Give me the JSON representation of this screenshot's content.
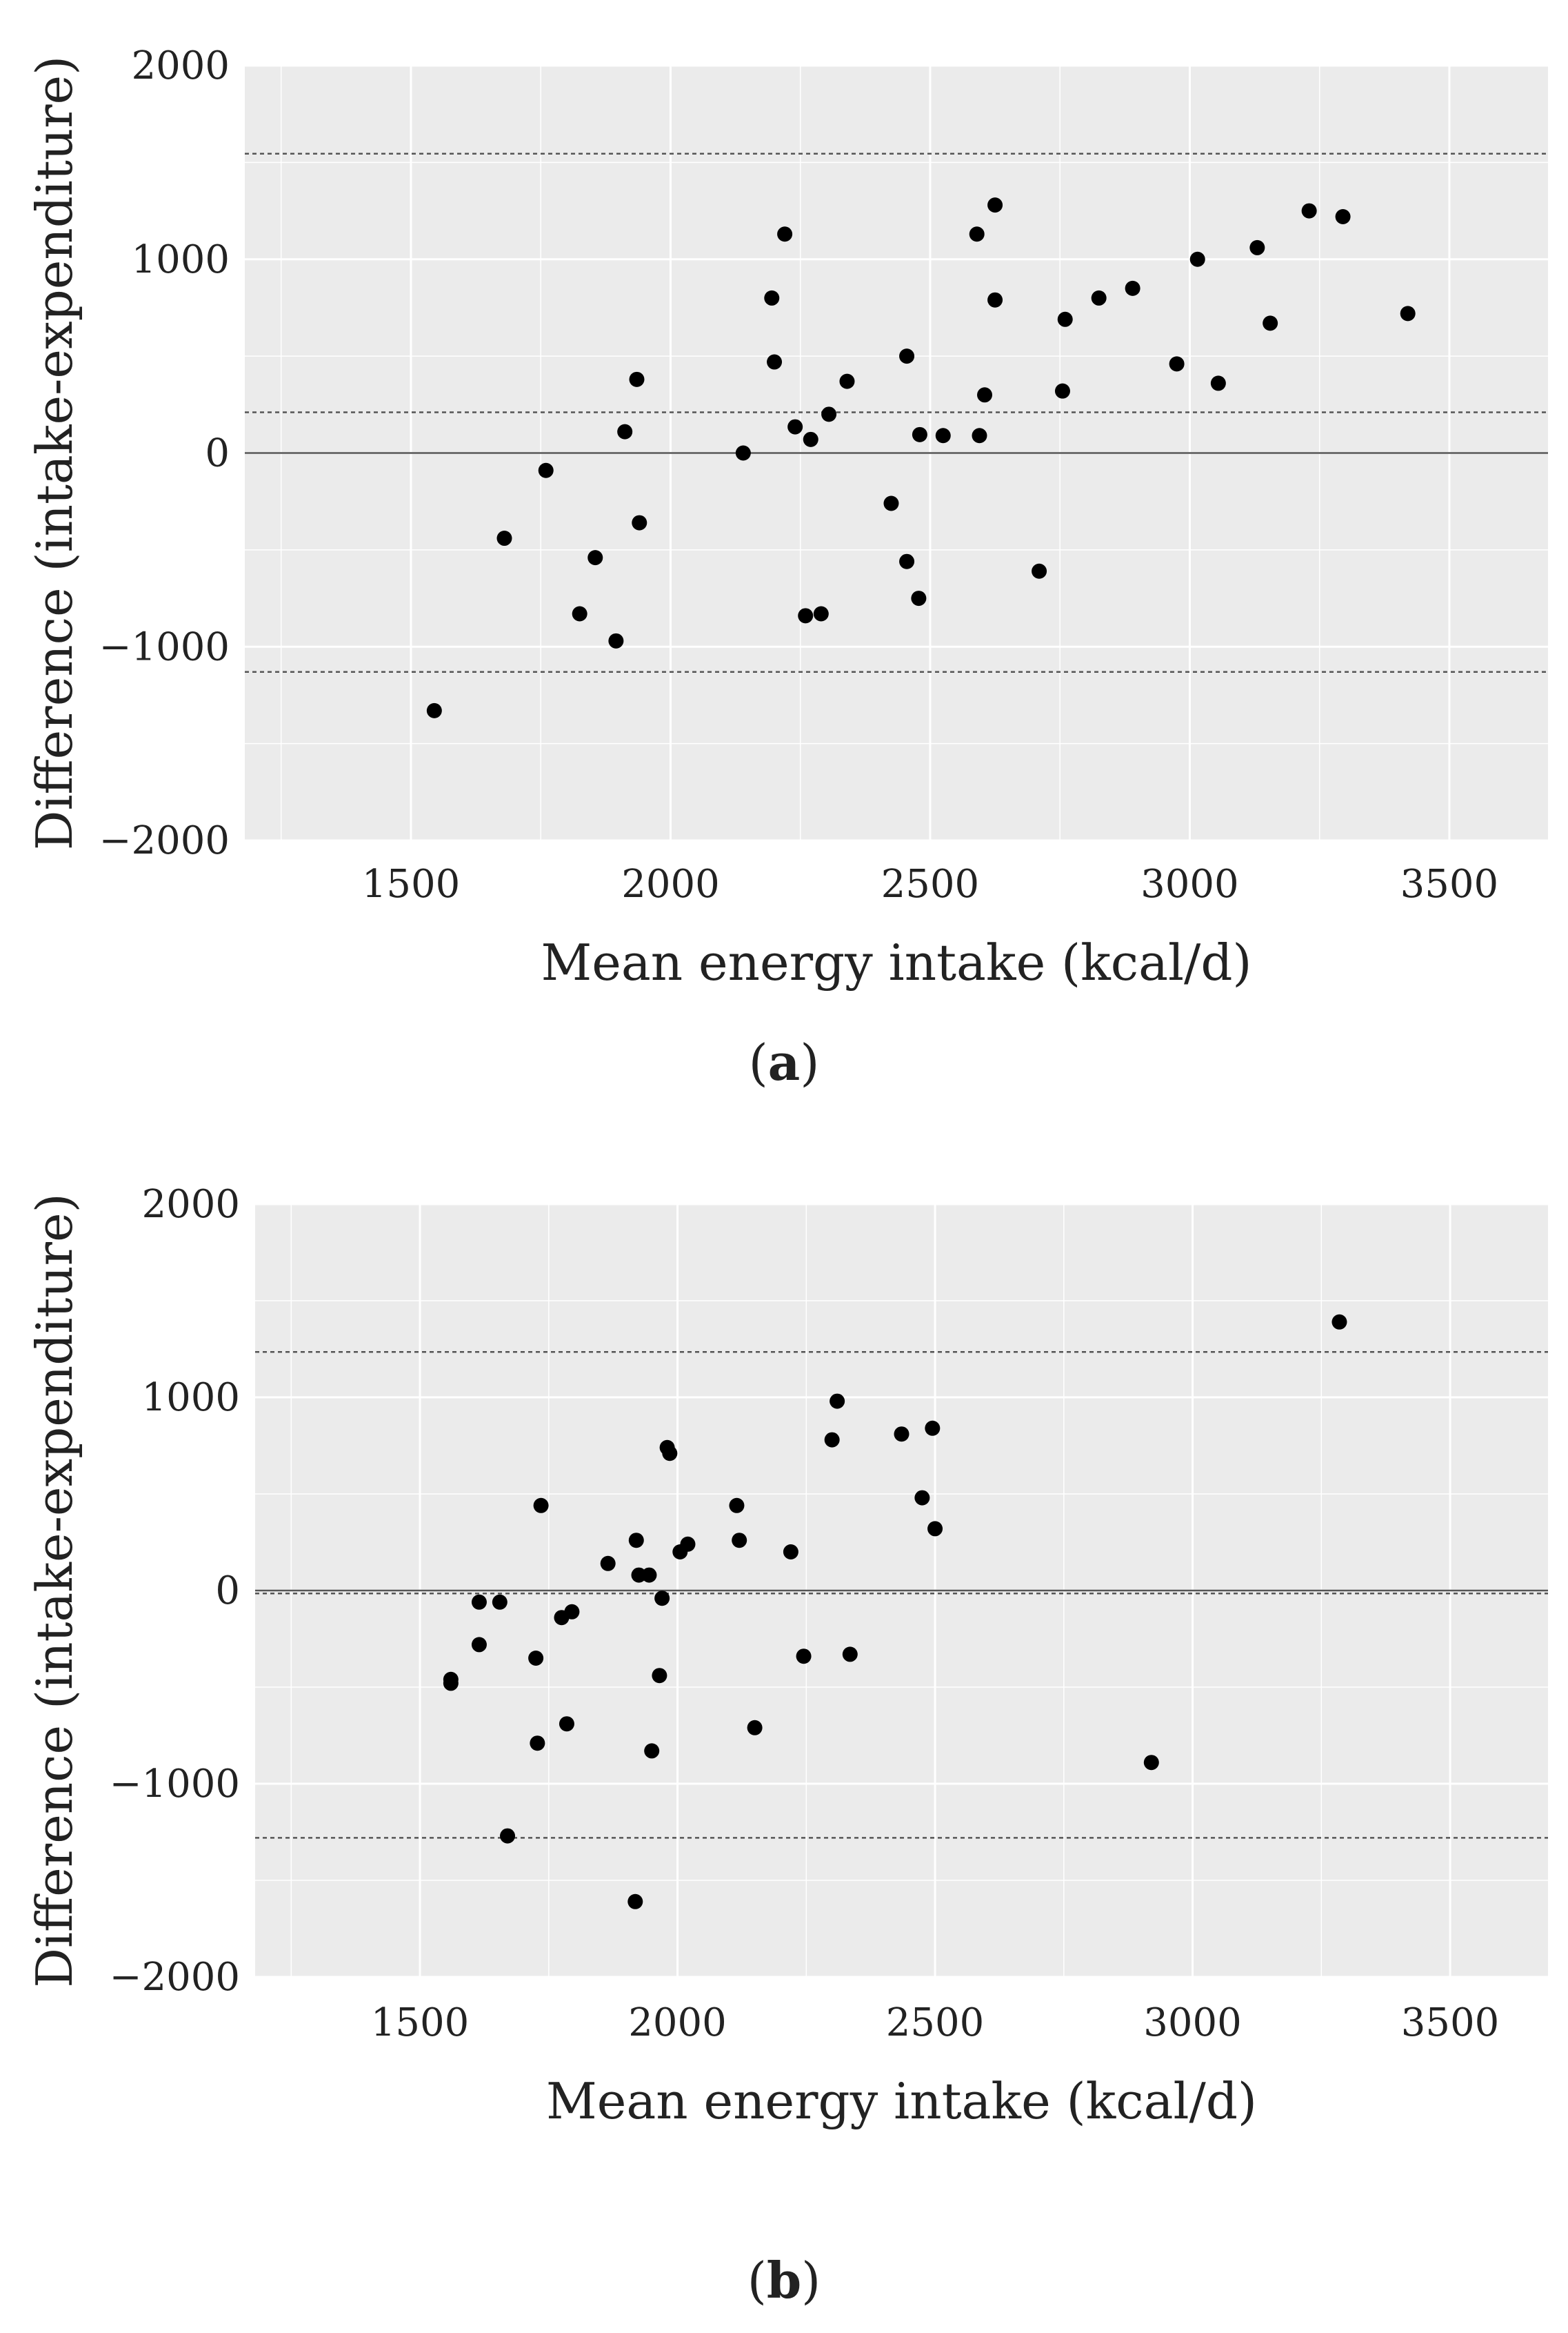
{
  "figure": {
    "panels": [
      {
        "caption_open": "(",
        "caption_letter": "a",
        "caption_close": ")"
      },
      {
        "caption_open": "(",
        "caption_letter": "b",
        "caption_close": ")"
      }
    ]
  },
  "colors": {
    "panel_bg": "#ebebeb",
    "grid": "#ffffff",
    "point": "#000000",
    "zero_line": "#555555",
    "loa_line": "#555555"
  },
  "chart_data": [
    {
      "type": "scatter",
      "title": "",
      "xlabel": "Mean energy intake (kcal/d)",
      "ylabel": "Difference (intake-expenditure)",
      "xlim": [
        1180,
        3690
      ],
      "ylim": [
        -2000,
        2000
      ],
      "xticks": [
        1500,
        2000,
        2500,
        3000,
        3500
      ],
      "yticks": [
        -2000,
        -1000,
        0,
        1000,
        2000
      ],
      "ytick_labels": [
        "−2000",
        "−1000",
        "0",
        "1000",
        "2000"
      ],
      "reference_lines": {
        "zero": 0,
        "mean_difference": 210,
        "upper_loa": 1545,
        "lower_loa": -1130
      },
      "points": [
        [
          1545,
          -1330
        ],
        [
          1680,
          -440
        ],
        [
          1760,
          -90
        ],
        [
          1825,
          -830
        ],
        [
          1855,
          -540
        ],
        [
          1895,
          -970
        ],
        [
          1912,
          110
        ],
        [
          1935,
          380
        ],
        [
          1940,
          -360
        ],
        [
          2140,
          0
        ],
        [
          2195,
          800
        ],
        [
          2200,
          470
        ],
        [
          2220,
          1130
        ],
        [
          2240,
          135
        ],
        [
          2260,
          -840
        ],
        [
          2270,
          70
        ],
        [
          2290,
          -830
        ],
        [
          2305,
          200
        ],
        [
          2340,
          370
        ],
        [
          2425,
          -260
        ],
        [
          2455,
          500
        ],
        [
          2455,
          -560
        ],
        [
          2478,
          -750
        ],
        [
          2480,
          95
        ],
        [
          2525,
          90
        ],
        [
          2590,
          1130
        ],
        [
          2595,
          90
        ],
        [
          2605,
          300
        ],
        [
          2625,
          1280
        ],
        [
          2625,
          790
        ],
        [
          2710,
          -610
        ],
        [
          2755,
          320
        ],
        [
          2760,
          690
        ],
        [
          2825,
          800
        ],
        [
          2890,
          850
        ],
        [
          2975,
          460
        ],
        [
          3015,
          1000
        ],
        [
          3055,
          360
        ],
        [
          3130,
          1060
        ],
        [
          3155,
          670
        ],
        [
          3230,
          1250
        ],
        [
          3295,
          1220
        ],
        [
          3420,
          720
        ]
      ]
    },
    {
      "type": "scatter",
      "title": "",
      "xlabel": "Mean energy intake (kcal/d)",
      "ylabel": "Difference (intake-expenditure)",
      "xlim": [
        1180,
        3690
      ],
      "ylim": [
        -2000,
        2000
      ],
      "xticks": [
        1500,
        2000,
        2500,
        3000,
        3500
      ],
      "yticks": [
        -2000,
        -1000,
        0,
        1000,
        2000
      ],
      "ytick_labels": [
        "−2000",
        "−1000",
        "0",
        "1000",
        "2000"
      ],
      "reference_lines": {
        "zero": 0,
        "mean_difference": -15,
        "upper_loa": 1235,
        "lower_loa": -1280
      },
      "points": [
        [
          1560,
          -480
        ],
        [
          1560,
          -460
        ],
        [
          1615,
          -60
        ],
        [
          1615,
          -280
        ],
        [
          1655,
          -60
        ],
        [
          1670,
          -1270
        ],
        [
          1725,
          -350
        ],
        [
          1728,
          -790
        ],
        [
          1735,
          440
        ],
        [
          1775,
          -140
        ],
        [
          1785,
          -690
        ],
        [
          1795,
          -110
        ],
        [
          1865,
          140
        ],
        [
          1918,
          -1610
        ],
        [
          1920,
          260
        ],
        [
          1925,
          80
        ],
        [
          1945,
          80
        ],
        [
          1950,
          -830
        ],
        [
          1965,
          -440
        ],
        [
          1970,
          -40
        ],
        [
          1980,
          740
        ],
        [
          1985,
          710
        ],
        [
          2005,
          200
        ],
        [
          2020,
          240
        ],
        [
          2115,
          440
        ],
        [
          2120,
          260
        ],
        [
          2150,
          -710
        ],
        [
          2220,
          200
        ],
        [
          2245,
          -340
        ],
        [
          2300,
          780
        ],
        [
          2310,
          980
        ],
        [
          2335,
          -330
        ],
        [
          2435,
          810
        ],
        [
          2475,
          480
        ],
        [
          2495,
          840
        ],
        [
          2500,
          320
        ],
        [
          2920,
          -890
        ],
        [
          3285,
          1390
        ]
      ]
    }
  ]
}
